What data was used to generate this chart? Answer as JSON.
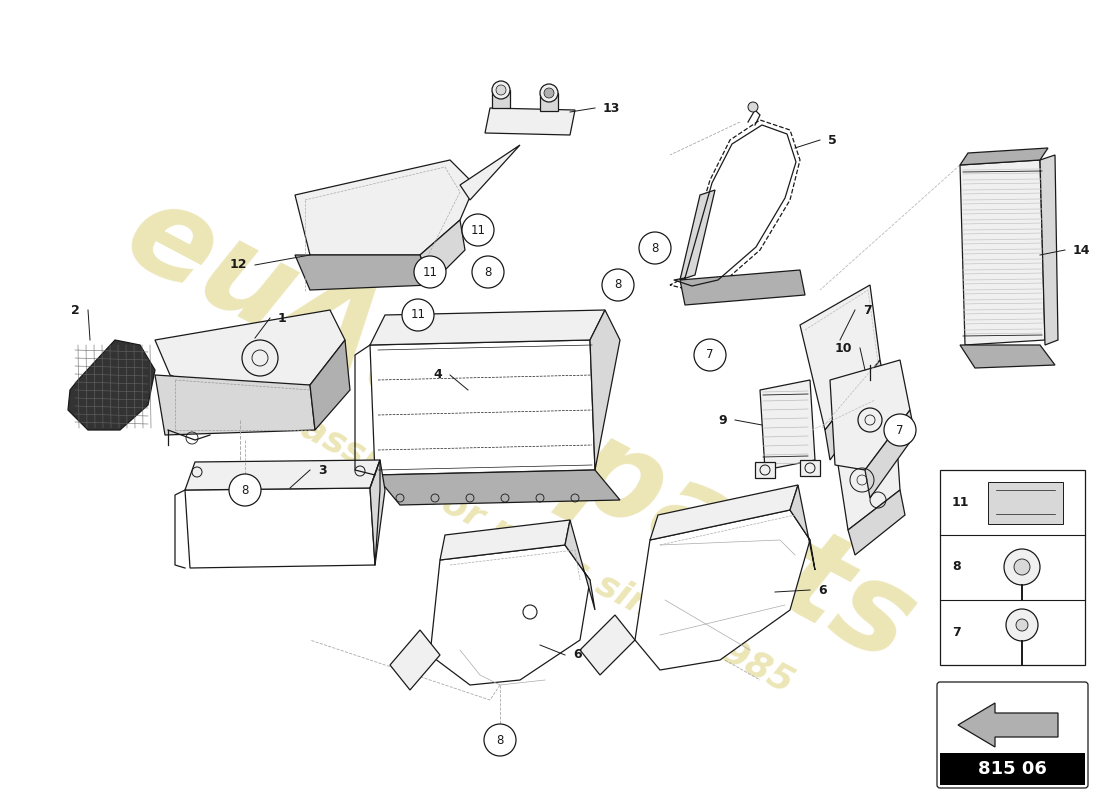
{
  "background_color": "#ffffff",
  "watermark_line1": "euAutoparts",
  "watermark_line2": "a passion for parts since 1985",
  "watermark_color": "#c8b830",
  "watermark_alpha": 0.35,
  "part_color": "#1a1a1a",
  "fill_white": "#ffffff",
  "fill_light": "#f0f0f0",
  "fill_mid": "#d8d8d8",
  "fill_dark": "#b0b0b0",
  "fill_very_dark": "#555555",
  "part_code": "815 06",
  "lw": 0.9
}
